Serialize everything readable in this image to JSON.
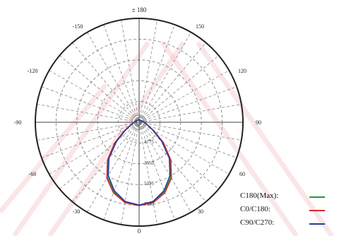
{
  "colors": {
    "background": "#ffffff",
    "grid": "#777777",
    "outer_circle": "#222222",
    "watermark": "#f2b8bd"
  },
  "chart_data": {
    "type": "polar",
    "angle_labels": [
      "± 180",
      "-150",
      "150",
      "-120",
      "120",
      "-90",
      "90",
      "-60",
      "60",
      "-30",
      "30",
      "0"
    ],
    "radial_labels": [
      "1775",
      "3550",
      "5325",
      "7100"
    ],
    "legend_position": "bottom-right",
    "grid": true,
    "series": [
      {
        "name": "C180(Max):",
        "color": "#1e9b3a",
        "points": [
          [
            0,
            7100
          ],
          [
            10,
            6900
          ],
          [
            20,
            6300
          ],
          [
            30,
            5400
          ],
          [
            40,
            4100
          ],
          [
            50,
            2600
          ],
          [
            60,
            1400
          ],
          [
            70,
            800
          ],
          [
            80,
            560
          ],
          [
            90,
            430
          ],
          [
            110,
            300
          ],
          [
            135,
            220
          ],
          [
            160,
            190
          ],
          [
            180,
            180
          ]
        ]
      },
      {
        "name": "C0/C180:",
        "color": "#d42a2a",
        "points": [
          [
            0,
            7100
          ],
          [
            10,
            6950
          ],
          [
            20,
            6400
          ],
          [
            30,
            5500
          ],
          [
            40,
            4200
          ],
          [
            50,
            2700
          ],
          [
            60,
            1450
          ],
          [
            70,
            820
          ],
          [
            80,
            570
          ],
          [
            90,
            440
          ],
          [
            110,
            300
          ],
          [
            135,
            220
          ],
          [
            160,
            190
          ],
          [
            180,
            180
          ]
        ]
      },
      {
        "name": "C90/C270:",
        "color": "#2a3a9e",
        "points": [
          [
            0,
            7050
          ],
          [
            10,
            6850
          ],
          [
            20,
            6200
          ],
          [
            30,
            5250
          ],
          [
            40,
            4000
          ],
          [
            50,
            2500
          ],
          [
            60,
            1350
          ],
          [
            70,
            780
          ],
          [
            80,
            540
          ],
          [
            90,
            420
          ],
          [
            110,
            300
          ],
          [
            135,
            220
          ],
          [
            160,
            190
          ],
          [
            180,
            180
          ]
        ]
      }
    ]
  }
}
